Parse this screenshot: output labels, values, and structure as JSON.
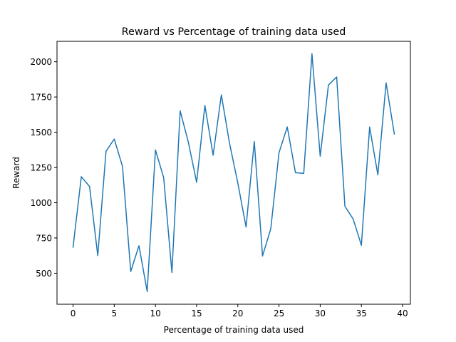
{
  "chart_data": {
    "type": "line",
    "title": "Reward vs Percentage of training data used",
    "xlabel": "Percentage of training data used",
    "ylabel": "Reward",
    "xlim": [
      -1.95,
      40.95
    ],
    "ylim": [
      280,
      2145
    ],
    "xticks": [
      0,
      5,
      10,
      15,
      20,
      25,
      30,
      35,
      40
    ],
    "yticks": [
      500,
      750,
      1000,
      1250,
      1500,
      1750,
      2000
    ],
    "grid": false,
    "series": [
      {
        "color": "#1f77b4",
        "x": [
          0,
          1,
          2,
          3,
          4,
          5,
          6,
          7,
          8,
          9,
          10,
          11,
          12,
          13,
          14,
          15,
          16,
          17,
          18,
          19,
          20,
          21,
          22,
          23,
          24,
          25,
          26,
          27,
          28,
          29,
          30,
          31,
          32,
          33,
          34,
          35,
          36,
          37,
          38,
          39
        ],
        "values": [
          685,
          1185,
          1115,
          625,
          1365,
          1452,
          1257,
          512,
          695,
          370,
          1375,
          1178,
          505,
          1652,
          1428,
          1145,
          1690,
          1337,
          1765,
          1420,
          1140,
          828,
          1435,
          622,
          815,
          1355,
          1538,
          1213,
          1208,
          2057,
          1330,
          1835,
          1892,
          975,
          885,
          698,
          1537,
          1198,
          1850,
          1487
        ]
      }
    ]
  }
}
